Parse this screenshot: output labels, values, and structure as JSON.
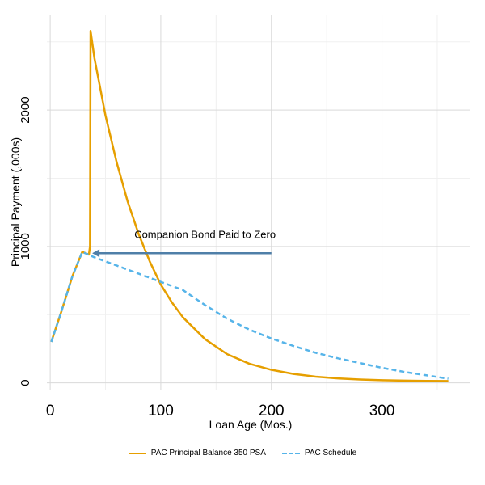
{
  "chart_data": {
    "type": "line",
    "xlabel": "Loan Age (Mos.)",
    "ylabel": "Principal Payment (,000s)",
    "xlim": [
      -3,
      380
    ],
    "ylim": [
      -50,
      2700
    ],
    "xticks": [
      0,
      100,
      200,
      300
    ],
    "yticks": [
      0,
      1000,
      2000
    ],
    "grid": true,
    "legend_position": "bottom",
    "annotation": {
      "text": "Companion Bond Paid to Zero",
      "arrow_from": [
        200,
        950
      ],
      "arrow_to": [
        38,
        950
      ]
    },
    "series": [
      {
        "name": "PAC Principal Balance 350 PSA",
        "color": "#E69F00",
        "style": "solid",
        "x": [
          1,
          10,
          20,
          29,
          35,
          36,
          36.5,
          40,
          50,
          60,
          70,
          80,
          90,
          100,
          110,
          120,
          140,
          160,
          180,
          200,
          220,
          240,
          260,
          280,
          300,
          320,
          340,
          360
        ],
        "y": [
          300,
          520,
          780,
          960,
          940,
          1000,
          2580,
          2380,
          1960,
          1620,
          1330,
          1090,
          890,
          720,
          590,
          480,
          320,
          210,
          140,
          95,
          65,
          45,
          32,
          24,
          19,
          16,
          14,
          13
        ]
      },
      {
        "name": "PAC Schedule",
        "color": "#56B4E9",
        "style": "dashed",
        "x": [
          1,
          10,
          20,
          29,
          40,
          60,
          80,
          100,
          120,
          140,
          160,
          180,
          200,
          220,
          240,
          260,
          280,
          300,
          320,
          340,
          360
        ],
        "y": [
          300,
          520,
          780,
          960,
          920,
          860,
          800,
          740,
          680,
          570,
          470,
          390,
          325,
          270,
          220,
          180,
          145,
          110,
          80,
          55,
          30
        ]
      }
    ]
  }
}
